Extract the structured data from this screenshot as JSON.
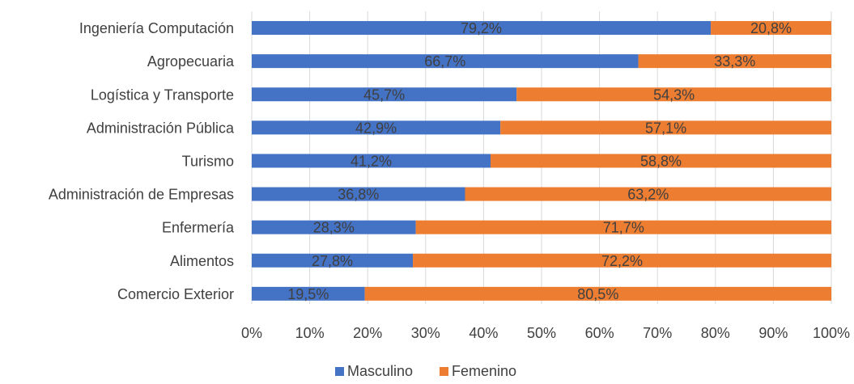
{
  "chart_data": {
    "type": "bar",
    "orientation": "horizontal",
    "stacked": "percent",
    "categories": [
      "Ingeniería Computación",
      "Agropecuaria",
      "Logística y Transporte",
      "Administración Pública",
      "Turismo",
      "Administración de Empresas",
      "Enfermería",
      "Alimentos",
      "Comercio Exterior"
    ],
    "series": [
      {
        "name": "Masculino",
        "color": "#4472C4",
        "values": [
          79.2,
          66.7,
          45.7,
          42.9,
          41.2,
          36.8,
          28.3,
          27.8,
          19.5
        ],
        "labels": [
          "79,2%",
          "66,7%",
          "45,7%",
          "42,9%",
          "41,2%",
          "36,8%",
          "28,3%",
          "27,8%",
          "19,5%"
        ]
      },
      {
        "name": "Femenino",
        "color": "#ED7D31",
        "values": [
          20.8,
          33.3,
          54.3,
          57.1,
          58.8,
          63.2,
          71.7,
          72.2,
          80.5
        ],
        "labels": [
          "20,8%",
          "33,3%",
          "54,3%",
          "57,1%",
          "58,8%",
          "63,2%",
          "71,7%",
          "72,2%",
          "80,5%"
        ]
      }
    ],
    "xlim": [
      0,
      100
    ],
    "xticks": [
      "0%",
      "10%",
      "20%",
      "30%",
      "40%",
      "50%",
      "60%",
      "70%",
      "80%",
      "90%",
      "100%"
    ],
    "grid": "vertical",
    "gridColor": "#D9D9D9",
    "legend": "bottom"
  }
}
